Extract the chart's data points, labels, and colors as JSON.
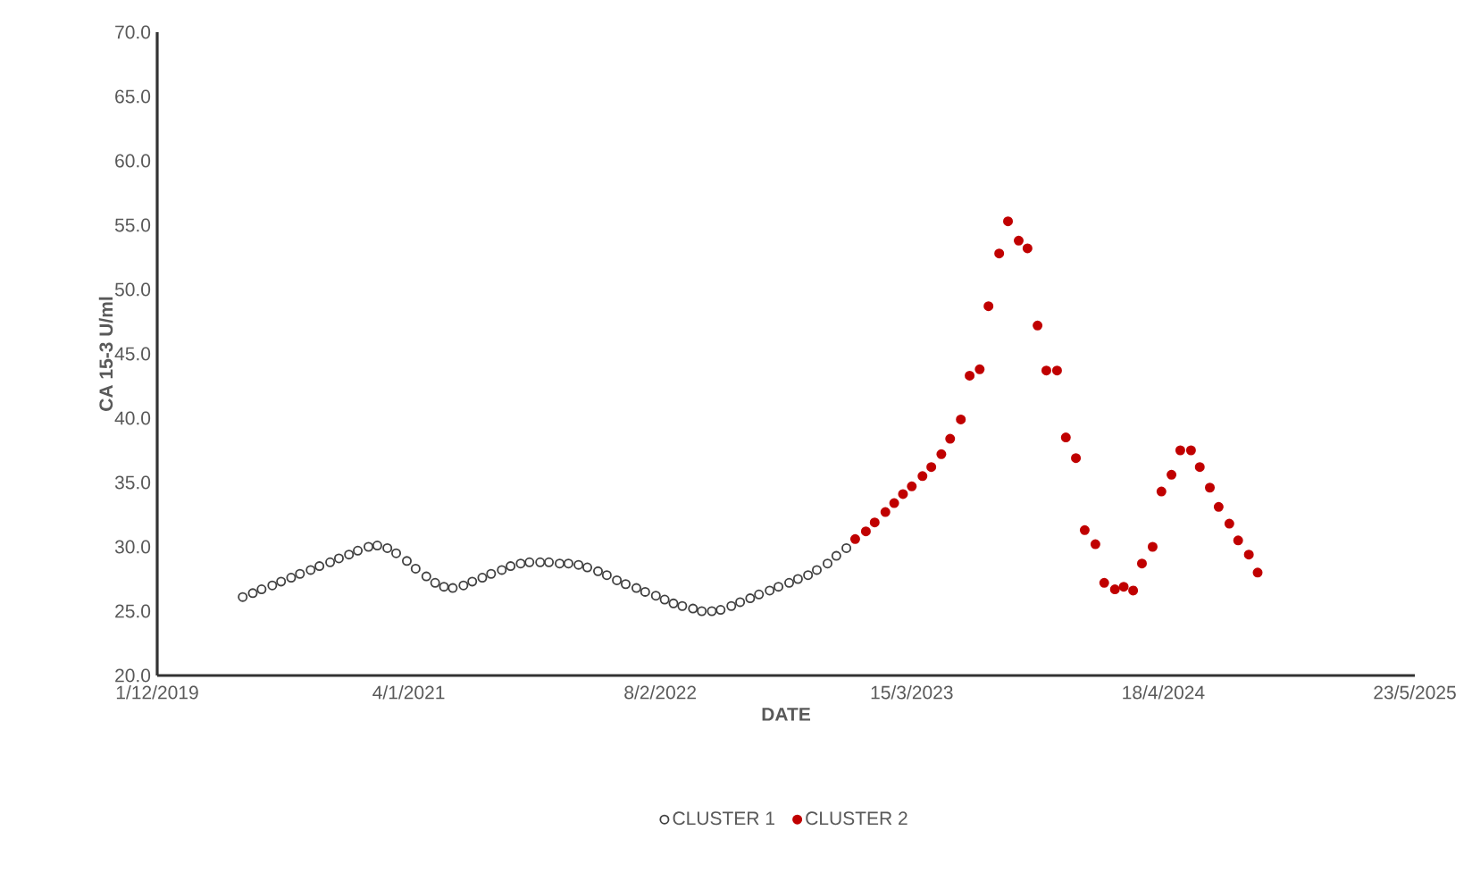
{
  "chart_data": {
    "type": "scatter",
    "xlabel": "DATE",
    "ylabel": "CA 15-3 U/ml",
    "xlim": [
      "2019-12-01",
      "2025-05-23"
    ],
    "xticks": [
      {
        "value": "2019-12-01",
        "label": "1/12/2019"
      },
      {
        "value": "2021-01-04",
        "label": "4/1/2021"
      },
      {
        "value": "2022-02-08",
        "label": "8/2/2022"
      },
      {
        "value": "2023-03-15",
        "label": "15/3/2023"
      },
      {
        "value": "2024-04-18",
        "label": "18/4/2024"
      },
      {
        "value": "2025-05-23",
        "label": "23/5/2025"
      }
    ],
    "ylim": [
      20,
      70
    ],
    "yticks": [
      {
        "value": 20,
        "label": "20.0"
      },
      {
        "value": 25,
        "label": "25.0"
      },
      {
        "value": 30,
        "label": "30.0"
      },
      {
        "value": 35,
        "label": "35.0"
      },
      {
        "value": 40,
        "label": "40.0"
      },
      {
        "value": 45,
        "label": "45.0"
      },
      {
        "value": 50,
        "label": "50.0"
      },
      {
        "value": 55,
        "label": "55.0"
      },
      {
        "value": 60,
        "label": "60.0"
      },
      {
        "value": 65,
        "label": "65.0"
      },
      {
        "value": 70,
        "label": "70.0"
      }
    ],
    "grid": false,
    "legend": "bottom",
    "marker": "circle",
    "series": [
      {
        "name": "CLUSTER 1",
        "color": "#404040",
        "x": [
          "2020-04-15",
          "2020-05-01",
          "2020-05-15",
          "2020-06-01",
          "2020-06-15",
          "2020-07-01",
          "2020-07-15",
          "2020-08-01",
          "2020-08-15",
          "2020-09-01",
          "2020-09-15",
          "2020-10-01",
          "2020-10-15",
          "2020-11-01",
          "2020-11-15",
          "2020-12-01",
          "2020-12-15",
          "2021-01-01",
          "2021-01-15",
          "2021-02-01",
          "2021-02-15",
          "2021-03-01",
          "2021-03-15",
          "2021-04-01",
          "2021-04-15",
          "2021-05-01",
          "2021-05-15",
          "2021-06-01",
          "2021-06-15",
          "2021-07-01",
          "2021-07-15",
          "2021-08-01",
          "2021-08-15",
          "2021-09-01",
          "2021-09-15",
          "2021-10-01",
          "2021-10-15",
          "2021-11-01",
          "2021-11-15",
          "2021-12-01",
          "2021-12-15",
          "2022-01-01",
          "2022-01-15",
          "2022-02-01",
          "2022-02-15",
          "2022-03-01",
          "2022-03-15",
          "2022-04-01",
          "2022-04-15",
          "2022-05-01",
          "2022-05-15",
          "2022-06-01",
          "2022-06-15",
          "2022-07-01",
          "2022-07-15",
          "2022-08-01",
          "2022-08-15",
          "2022-09-01",
          "2022-09-15",
          "2022-10-01",
          "2022-10-15",
          "2022-11-01",
          "2022-11-15",
          "2022-12-01"
        ],
        "values": [
          26.1,
          26.4,
          26.7,
          27.0,
          27.3,
          27.6,
          27.9,
          28.2,
          28.5,
          28.8,
          29.1,
          29.4,
          29.7,
          30.0,
          30.1,
          29.9,
          29.5,
          28.9,
          28.3,
          27.7,
          27.2,
          26.9,
          26.8,
          27.0,
          27.3,
          27.6,
          27.9,
          28.2,
          28.5,
          28.7,
          28.8,
          28.8,
          28.8,
          28.7,
          28.7,
          28.6,
          28.4,
          28.1,
          27.8,
          27.4,
          27.1,
          26.8,
          26.5,
          26.2,
          25.9,
          25.6,
          25.4,
          25.2,
          25.0,
          25.0,
          25.1,
          25.4,
          25.7,
          26.0,
          26.3,
          26.6,
          26.9,
          27.2,
          27.5,
          27.8,
          28.2,
          28.7,
          29.3,
          29.9
        ]
      },
      {
        "name": "CLUSTER 2",
        "color": "#c00000",
        "x": [
          "2022-12-15",
          "2023-01-01",
          "2023-01-15",
          "2023-02-01",
          "2023-02-15",
          "2023-03-01",
          "2023-03-15",
          "2023-04-01",
          "2023-04-15",
          "2023-05-01",
          "2023-05-15",
          "2023-06-01",
          "2023-06-15",
          "2023-07-01",
          "2023-07-15",
          "2023-08-01",
          "2023-08-15",
          "2023-09-01",
          "2023-09-15",
          "2023-10-01",
          "2023-10-15",
          "2023-11-01",
          "2023-11-15",
          "2023-12-01",
          "2023-12-15",
          "2024-01-01",
          "2024-01-15",
          "2024-02-01",
          "2024-02-15",
          "2024-03-01",
          "2024-03-15",
          "2024-04-01",
          "2024-04-15",
          "2024-05-01",
          "2024-05-15",
          "2024-06-01",
          "2024-06-15",
          "2024-07-01",
          "2024-07-15",
          "2024-08-01",
          "2024-08-15",
          "2024-09-01",
          "2024-09-15"
        ],
        "values": [
          30.6,
          31.2,
          31.9,
          32.7,
          33.4,
          34.1,
          34.7,
          35.5,
          36.2,
          37.2,
          38.4,
          39.9,
          43.3,
          43.8,
          48.7,
          52.8,
          55.3,
          53.8,
          53.2,
          47.2,
          43.7,
          43.7,
          38.5,
          36.9,
          31.3,
          30.2,
          27.2,
          26.7,
          26.9,
          26.6,
          28.7,
          30.0,
          34.3,
          35.6,
          37.5,
          37.5,
          36.2,
          34.6,
          33.1,
          31.8,
          30.5,
          29.4,
          28.0
        ]
      }
    ]
  }
}
